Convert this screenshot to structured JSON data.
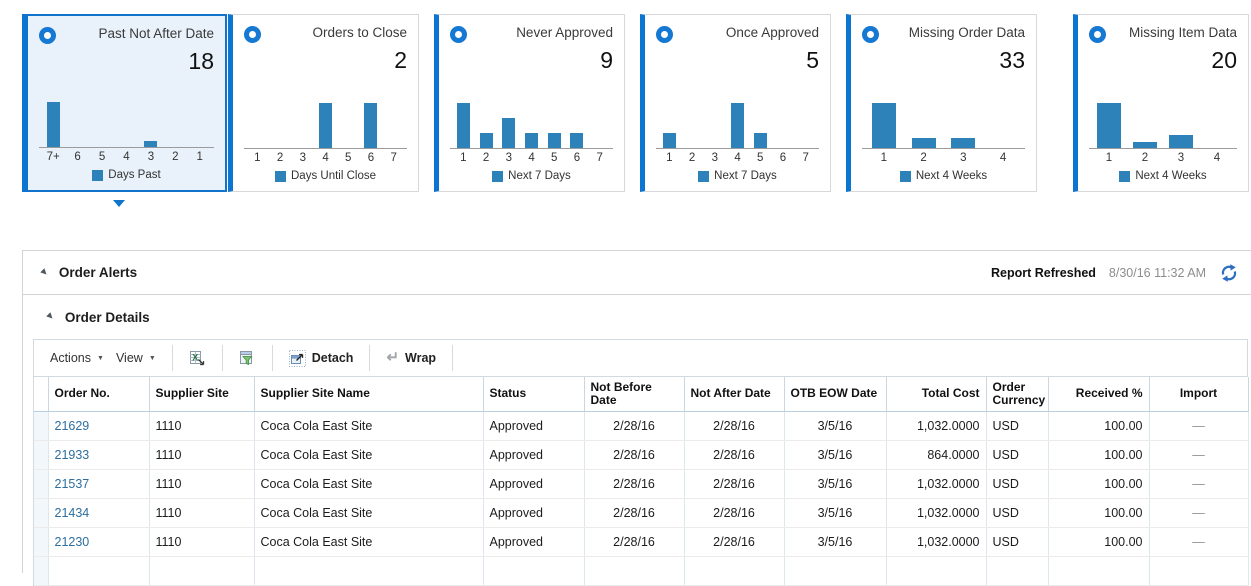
{
  "colors": {
    "accent_blue": "#0c75d1",
    "bar_blue": "#2e82ba",
    "selected_tile_bg": "#e9f2fb",
    "link_blue": "#2d6e9e"
  },
  "icons": {
    "disclosure": "▼",
    "menu_caret": "▼",
    "wrap_arrow": "↵",
    "tile_marker": "▼"
  },
  "tiles": [
    {
      "title": "Past Not After Date",
      "count": "18",
      "selected": true,
      "categories": [
        "7+",
        "6",
        "5",
        "4",
        "3",
        "2",
        "1"
      ],
      "values": [
        16,
        0,
        0,
        0,
        2,
        0,
        0
      ],
      "legend": "Days Past"
    },
    {
      "title": "Orders to Close",
      "count": "2",
      "selected": false,
      "categories": [
        "1",
        "2",
        "3",
        "4",
        "5",
        "6",
        "7"
      ],
      "values": [
        0,
        0,
        0,
        1,
        0,
        1,
        0
      ],
      "legend": "Days Until Close"
    },
    {
      "title": "Never Approved",
      "count": "9",
      "selected": false,
      "categories": [
        "1",
        "2",
        "3",
        "4",
        "5",
        "6",
        "7"
      ],
      "values": [
        3,
        1,
        2,
        1,
        1,
        1,
        0
      ],
      "legend": "Next 7 Days"
    },
    {
      "title": "Once Approved",
      "count": "5",
      "selected": false,
      "categories": [
        "1",
        "2",
        "3",
        "4",
        "5",
        "6",
        "7"
      ],
      "values": [
        1,
        0,
        0,
        3,
        1,
        0,
        0
      ],
      "legend": "Next 7 Days"
    },
    {
      "title": "Missing Order Data",
      "count": "33",
      "selected": false,
      "categories": [
        "1",
        "2",
        "3",
        "4"
      ],
      "values": [
        23,
        5,
        5,
        0
      ],
      "legend": "Next 4 Weeks"
    },
    {
      "title": "Missing Item Data",
      "count": "20",
      "selected": false,
      "categories": [
        "1",
        "2",
        "3",
        "4"
      ],
      "values": [
        14,
        2,
        4,
        0
      ],
      "legend": "Next 4 Weeks"
    }
  ],
  "chart_data": [
    {
      "type": "bar",
      "title": "Past Not After Date",
      "categories": [
        "7+",
        "6",
        "5",
        "4",
        "3",
        "2",
        "1"
      ],
      "values": [
        16,
        0,
        0,
        0,
        2,
        0,
        0
      ],
      "xlabel": "Days Past",
      "ylim": [
        0,
        16
      ]
    },
    {
      "type": "bar",
      "title": "Orders to Close",
      "categories": [
        "1",
        "2",
        "3",
        "4",
        "5",
        "6",
        "7"
      ],
      "values": [
        0,
        0,
        0,
        1,
        0,
        1,
        0
      ],
      "xlabel": "Days Until Close",
      "ylim": [
        0,
        1
      ]
    },
    {
      "type": "bar",
      "title": "Never Approved",
      "categories": [
        "1",
        "2",
        "3",
        "4",
        "5",
        "6",
        "7"
      ],
      "values": [
        3,
        1,
        2,
        1,
        1,
        1,
        0
      ],
      "xlabel": "Next 7 Days",
      "ylim": [
        0,
        3
      ]
    },
    {
      "type": "bar",
      "title": "Once Approved",
      "categories": [
        "1",
        "2",
        "3",
        "4",
        "5",
        "6",
        "7"
      ],
      "values": [
        1,
        0,
        0,
        3,
        1,
        0,
        0
      ],
      "xlabel": "Next 7 Days",
      "ylim": [
        0,
        3
      ]
    },
    {
      "type": "bar",
      "title": "Missing Order Data",
      "categories": [
        "1",
        "2",
        "3",
        "4"
      ],
      "values": [
        23,
        5,
        5,
        0
      ],
      "xlabel": "Next 4 Weeks",
      "ylim": [
        0,
        23
      ]
    },
    {
      "type": "bar",
      "title": "Missing Item Data",
      "categories": [
        "1",
        "2",
        "3",
        "4"
      ],
      "values": [
        14,
        2,
        4,
        0
      ],
      "xlabel": "Next 4 Weeks",
      "ylim": [
        0,
        14
      ]
    }
  ],
  "sections": {
    "order_alerts": {
      "title": "Order Alerts",
      "report_refreshed_label": "Report Refreshed",
      "report_refreshed_time": "8/30/16 11:32 AM"
    },
    "order_details": {
      "title": "Order Details"
    }
  },
  "toolbar": {
    "actions": "Actions",
    "view": "View",
    "detach": "Detach",
    "wrap": "Wrap"
  },
  "table": {
    "columns": [
      {
        "key": "sel",
        "label": ""
      },
      {
        "key": "order_no",
        "label": "Order No."
      },
      {
        "key": "supplier_site",
        "label": "Supplier Site"
      },
      {
        "key": "supplier_site_name",
        "label": "Supplier Site Name"
      },
      {
        "key": "status",
        "label": "Status"
      },
      {
        "key": "not_before",
        "label": "Not Before Date"
      },
      {
        "key": "not_after",
        "label": "Not After Date"
      },
      {
        "key": "otb_eow",
        "label": "OTB EOW Date"
      },
      {
        "key": "total_cost",
        "label": "Total Cost"
      },
      {
        "key": "currency",
        "label": "Order Currency"
      },
      {
        "key": "received",
        "label": "Received %"
      },
      {
        "key": "import",
        "label": "Import"
      }
    ],
    "rows": [
      {
        "order_no": "21629",
        "supplier_site": "1110",
        "supplier_site_name": "Coca Cola East Site",
        "status": "Approved",
        "not_before": "2/28/16",
        "not_after": "2/28/16",
        "otb_eow": "3/5/16",
        "total_cost": "1,032.0000",
        "currency": "USD",
        "received": "100.00",
        "import": "—"
      },
      {
        "order_no": "21933",
        "supplier_site": "1110",
        "supplier_site_name": "Coca Cola East Site",
        "status": "Approved",
        "not_before": "2/28/16",
        "not_after": "2/28/16",
        "otb_eow": "3/5/16",
        "total_cost": "864.0000",
        "currency": "USD",
        "received": "100.00",
        "import": "—"
      },
      {
        "order_no": "21537",
        "supplier_site": "1110",
        "supplier_site_name": "Coca Cola East Site",
        "status": "Approved",
        "not_before": "2/28/16",
        "not_after": "2/28/16",
        "otb_eow": "3/5/16",
        "total_cost": "1,032.0000",
        "currency": "USD",
        "received": "100.00",
        "import": "—"
      },
      {
        "order_no": "21434",
        "supplier_site": "1110",
        "supplier_site_name": "Coca Cola East Site",
        "status": "Approved",
        "not_before": "2/28/16",
        "not_after": "2/28/16",
        "otb_eow": "3/5/16",
        "total_cost": "1,032.0000",
        "currency": "USD",
        "received": "100.00",
        "import": "—"
      },
      {
        "order_no": "21230",
        "supplier_site": "1110",
        "supplier_site_name": "Coca Cola East Site",
        "status": "Approved",
        "not_before": "2/28/16",
        "not_after": "2/28/16",
        "otb_eow": "3/5/16",
        "total_cost": "1,032.0000",
        "currency": "USD",
        "received": "100.00",
        "import": "—"
      }
    ]
  }
}
